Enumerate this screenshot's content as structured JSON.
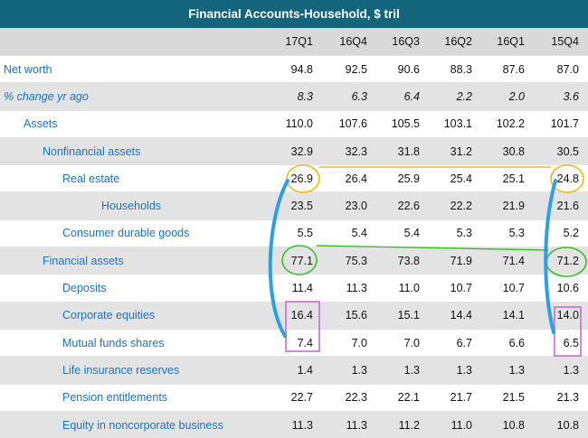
{
  "title": "Financial Accounts-Household, $ tril",
  "chart_data": {
    "type": "table",
    "columns": [
      "17Q1",
      "16Q4",
      "16Q3",
      "16Q2",
      "16Q1",
      "15Q4"
    ],
    "rows": [
      {
        "label": "Net worth",
        "indent": 0,
        "italic": false,
        "values": [
          "94.8",
          "92.5",
          "90.6",
          "88.3",
          "87.6",
          "87.0"
        ]
      },
      {
        "label": "% change yr ago",
        "indent": 0,
        "italic": true,
        "values": [
          "8.3",
          "6.3",
          "6.4",
          "2.2",
          "2.0",
          "3.6"
        ]
      },
      {
        "label": "Assets",
        "indent": 1,
        "italic": false,
        "values": [
          "110.0",
          "107.6",
          "105.5",
          "103.1",
          "102.2",
          "101.7"
        ]
      },
      {
        "label": "Nonfinancial assets",
        "indent": 2,
        "italic": false,
        "values": [
          "32.9",
          "32.3",
          "31.8",
          "31.2",
          "30.8",
          "30.5"
        ]
      },
      {
        "label": "Real estate",
        "indent": 3,
        "italic": false,
        "values": [
          "26.9",
          "26.4",
          "25.9",
          "25.4",
          "25.1",
          "24.8"
        ]
      },
      {
        "label": "Households",
        "indent": 4,
        "italic": false,
        "values": [
          "23.5",
          "23.0",
          "22.6",
          "22.2",
          "21.9",
          "21.6"
        ]
      },
      {
        "label": "Consumer durable goods",
        "indent": 3,
        "italic": false,
        "values": [
          "5.5",
          "5.4",
          "5.4",
          "5.3",
          "5.3",
          "5.2"
        ]
      },
      {
        "label": "Financial assets",
        "indent": 2,
        "italic": false,
        "values": [
          "77.1",
          "75.3",
          "73.8",
          "71.9",
          "71.4",
          "71.2"
        ]
      },
      {
        "label": "Deposits",
        "indent": 3,
        "italic": false,
        "values": [
          "11.4",
          "11.3",
          "11.0",
          "10.7",
          "10.7",
          "10.6"
        ]
      },
      {
        "label": "Corporate equities",
        "indent": 3,
        "italic": false,
        "values": [
          "16.4",
          "15.6",
          "15.1",
          "14.4",
          "14.1",
          "14.0"
        ]
      },
      {
        "label": "Mutual funds shares",
        "indent": 3,
        "italic": false,
        "values": [
          "7.4",
          "7.0",
          "7.0",
          "6.7",
          "6.6",
          "6.5"
        ]
      },
      {
        "label": "Life insurance reserves",
        "indent": 3,
        "italic": false,
        "values": [
          "1.4",
          "1.3",
          "1.3",
          "1.3",
          "1.3",
          "1.3"
        ]
      },
      {
        "label": "Pension entitlements",
        "indent": 3,
        "italic": false,
        "values": [
          "22.7",
          "22.3",
          "22.1",
          "21.7",
          "21.5",
          "21.3"
        ]
      },
      {
        "label": "Equity in noncorporate business",
        "indent": 3,
        "italic": false,
        "values": [
          "11.3",
          "11.3",
          "11.2",
          "11.0",
          "10.8",
          "10.8"
        ]
      }
    ]
  },
  "annotations": {
    "orange_circles": [
      "Real estate / 17Q1",
      "Real estate / 15Q4"
    ],
    "green_circles": [
      "Financial assets / 17Q1",
      "Financial assets / 15Q4"
    ],
    "purple_boxes": [
      "Corporate equities + Mutual funds shares / 17Q1",
      "Corporate equities + Mutual funds shares / 15Q4"
    ],
    "colors": {
      "orange": "#f3b81c",
      "green": "#3dbb2f",
      "purple": "#c86ad6",
      "blue": "#2f9fe3"
    }
  },
  "colors": {
    "title_bg": "#12657a",
    "label": "#1a73c2",
    "shade": "#e3e3e3",
    "header_bg": "#d9d9d9"
  }
}
